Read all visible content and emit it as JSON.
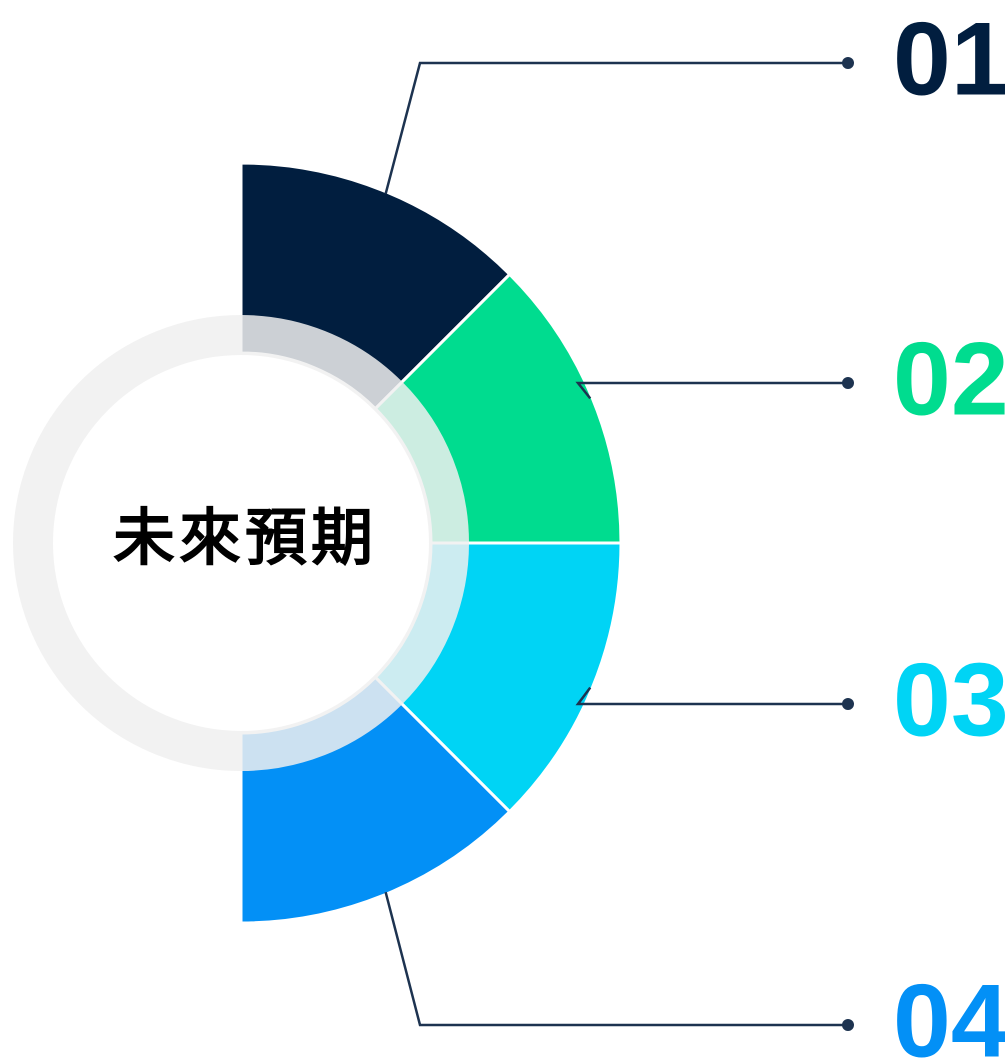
{
  "center_label": "未來預期",
  "items": [
    {
      "label": "01",
      "color": "#011e3f"
    },
    {
      "label": "02",
      "color": "#00dc8f"
    },
    {
      "label": "03",
      "color": "#00d4f5"
    },
    {
      "label": "04",
      "color": "#0390f6"
    }
  ]
}
